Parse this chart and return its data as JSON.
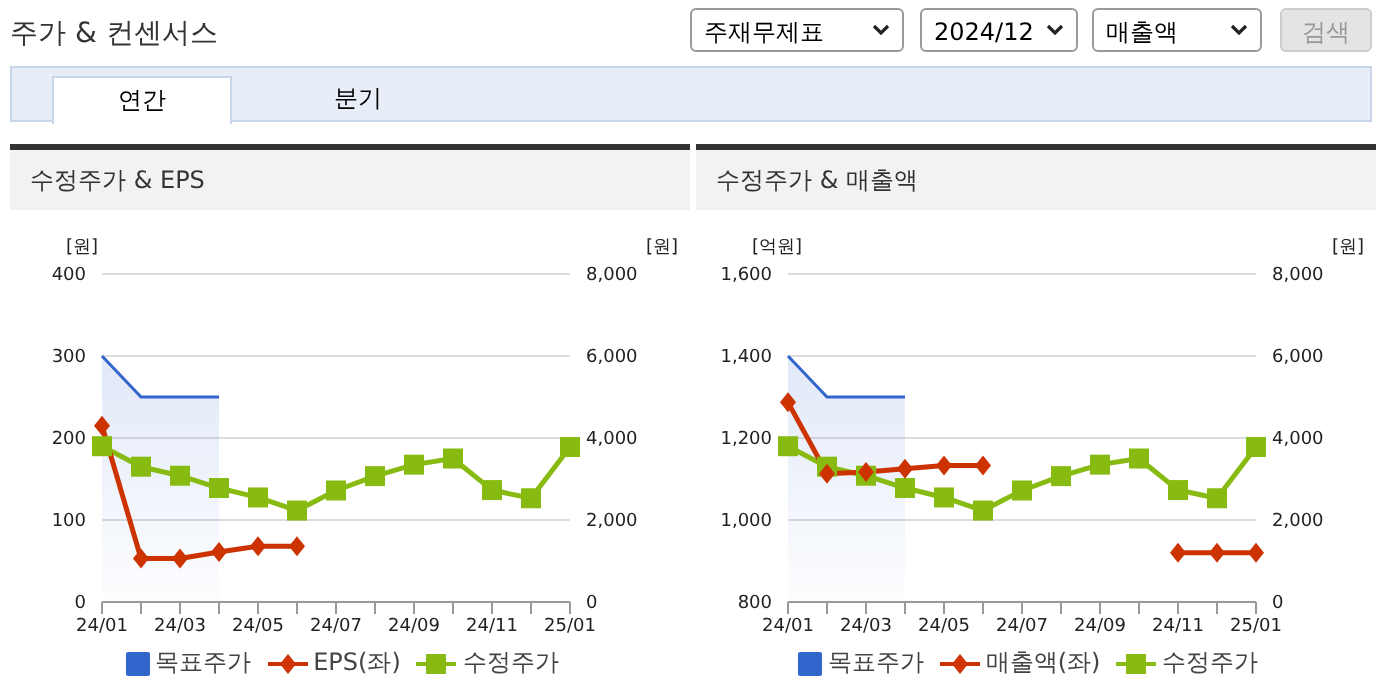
{
  "chart_data": [
    {
      "type": "other",
      "title": "주가 & 컨센서스",
      "annotations": [
        "주재무제표",
        "2024/12",
        "매출액",
        "검색",
        "연간",
        "분기"
      ]
    },
    {
      "type": "line",
      "title": "수정주가 & EPS",
      "ylabel": "[원]",
      "y2label": "[원]",
      "categories": [
        "24/01",
        null,
        "24/03",
        null,
        "24/05",
        null,
        "24/07",
        null,
        "24/09",
        null,
        "24/11",
        null,
        "25/01"
      ],
      "series": [
        {
          "name": "목표주가",
          "type": "area",
          "axis": "y2",
          "color": "#3366cc",
          "marker": "none",
          "values": [
            6000,
            5000,
            5000,
            5000,
            null,
            null,
            null,
            null,
            null,
            null,
            null,
            null,
            null
          ]
        },
        {
          "name": "EPS(좌)",
          "type": "line",
          "color": "#cc3300",
          "marker": "diamond",
          "values": [
            215,
            53,
            53,
            61,
            68,
            68,
            null,
            null,
            null,
            null,
            null,
            null,
            null
          ]
        },
        {
          "name": "수정주가",
          "type": "line",
          "axis": "y2",
          "color": "#88bb11",
          "marker": "square",
          "values": [
            3800,
            3300,
            3080,
            2780,
            2550,
            2230,
            2720,
            3070,
            3350,
            3500,
            2730,
            2530,
            3780
          ]
        }
      ],
      "ylim": [
        0,
        400
      ],
      "yticks": [
        0,
        100,
        200,
        300,
        400
      ],
      "y2lim": [
        0,
        8000
      ],
      "y2ticks": [
        0,
        {
          "value": 2000,
          "label": "2,000"
        },
        {
          "value": 4000,
          "label": "4,000"
        },
        {
          "value": 6000,
          "label": "6,000"
        },
        {
          "value": 8000,
          "label": "8,000"
        }
      ],
      "grid": "y",
      "legend": "bottom"
    },
    {
      "type": "line",
      "title": "수정주가 & 매출액",
      "ylabel": "[억원]",
      "y2label": "[원]",
      "categories": [
        "24/01",
        null,
        "24/03",
        null,
        "24/05",
        null,
        "24/07",
        null,
        "24/09",
        null,
        "24/11",
        null,
        "25/01"
      ],
      "series": [
        {
          "name": "목표주가",
          "type": "area",
          "axis": "y2",
          "color": "#3366cc",
          "marker": "none",
          "values": [
            6000,
            5000,
            5000,
            5000,
            null,
            null,
            null,
            null,
            null,
            null,
            null,
            null,
            null
          ]
        },
        {
          "name": "매출액(좌)",
          "type": "line",
          "color": "#cc3300",
          "marker": "diamond",
          "values": [
            1287,
            1113,
            1117,
            1125,
            1133,
            1133,
            null,
            null,
            null,
            null,
            920,
            920,
            920
          ]
        },
        {
          "name": "수정주가",
          "type": "line",
          "axis": "y2",
          "color": "#88bb11",
          "marker": "square",
          "values": [
            3800,
            3300,
            3080,
            2780,
            2550,
            2230,
            2720,
            3070,
            3350,
            3500,
            2730,
            2530,
            3780
          ]
        }
      ],
      "ylim": [
        800,
        1600
      ],
      "yticks": [
        800,
        {
          "value": 1000,
          "label": "1,000"
        },
        {
          "value": 1200,
          "label": "1,200"
        },
        {
          "value": 1400,
          "label": "1,400"
        },
        {
          "value": 1600,
          "label": "1,600"
        }
      ],
      "y2lim": [
        0,
        8000
      ],
      "y2ticks": [
        0,
        {
          "value": 2000,
          "label": "2,000"
        },
        {
          "value": 4000,
          "label": "4,000"
        },
        {
          "value": 6000,
          "label": "6,000"
        },
        {
          "value": 8000,
          "label": "8,000"
        }
      ],
      "grid": "y",
      "legend": "bottom"
    }
  ]
}
